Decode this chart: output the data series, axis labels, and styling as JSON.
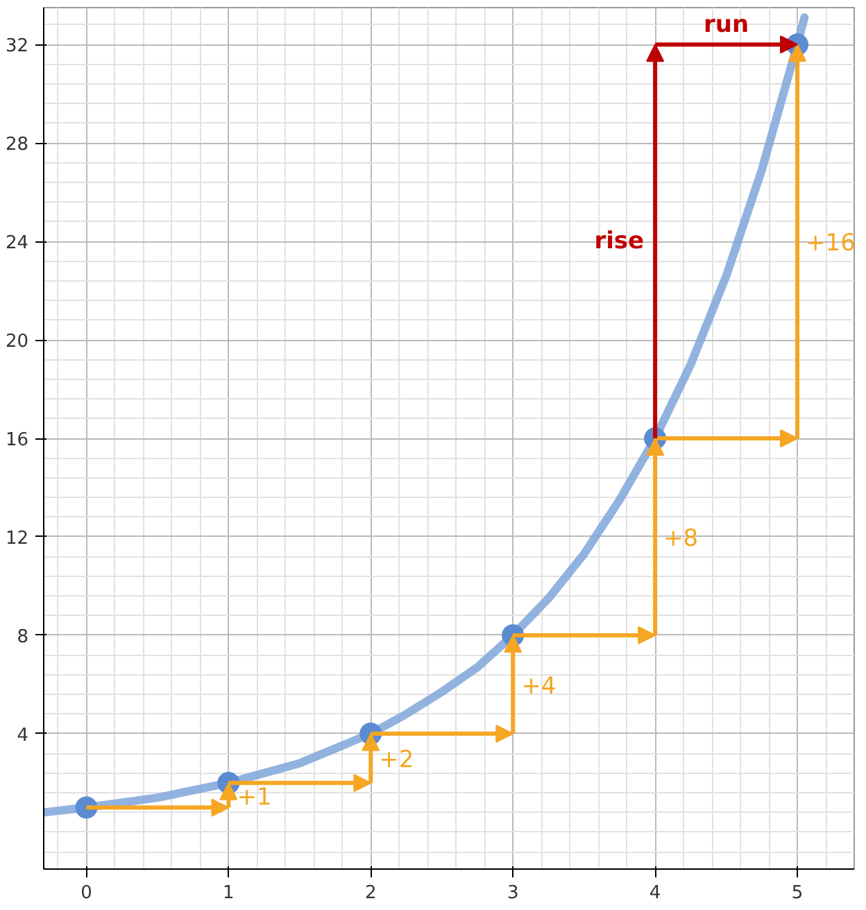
{
  "chart_data": {
    "type": "line",
    "xlim": [
      -0.3,
      5.4
    ],
    "ylim": [
      -1.5,
      33.5
    ],
    "xticks": [
      0,
      1,
      2,
      3,
      4,
      5
    ],
    "yticks": [
      4,
      8,
      12,
      16,
      20,
      24,
      28,
      32
    ],
    "grid": true,
    "series": [
      {
        "color": "#7fa6d9",
        "marker": "none",
        "x": [
          -0.3,
          0,
          0.25,
          0.5,
          0.75,
          1,
          1.25,
          1.5,
          1.75,
          2,
          2.25,
          2.5,
          2.75,
          3,
          3.25,
          3.5,
          3.75,
          4,
          4.25,
          4.5,
          4.75,
          5,
          5.05
        ],
        "values": [
          0.8,
          1,
          1.2,
          1.4,
          1.7,
          2,
          2.4,
          2.8,
          3.4,
          4,
          4.8,
          5.7,
          6.7,
          8,
          9.5,
          11.3,
          13.5,
          16,
          19,
          22.6,
          26.9,
          32,
          33.1
        ]
      },
      {
        "type": "scatter",
        "color": "#5b8bd0",
        "marker": "circle",
        "x": [
          0,
          1,
          2,
          3,
          4,
          5
        ],
        "values": [
          1,
          2,
          4,
          8,
          16,
          32
        ]
      }
    ],
    "annotations": [
      "+1",
      "+2",
      "+4",
      "+8",
      "+16",
      "rise",
      "run"
    ]
  }
}
